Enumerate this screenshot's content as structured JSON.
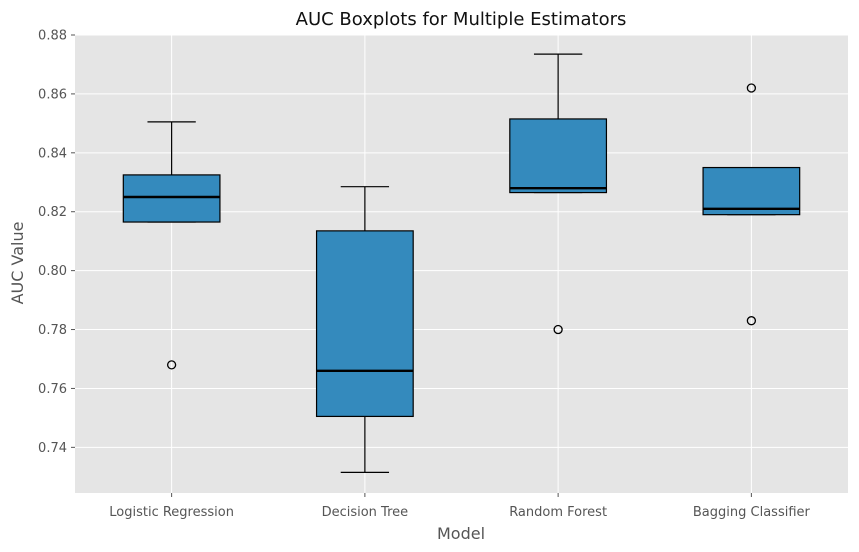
{
  "chart_data": {
    "type": "boxplot",
    "title": "AUC Boxplots for Multiple Estimators",
    "xlabel": "Model",
    "ylabel": "AUC Value",
    "ylim": [
      0.7245,
      0.88
    ],
    "yticks": [
      "0.74",
      "0.76",
      "0.78",
      "0.80",
      "0.82",
      "0.84",
      "0.86",
      "0.88"
    ],
    "categories": [
      "Logistic Regression",
      "Decision Tree",
      "Random Forest",
      "Bagging Classifier"
    ],
    "boxes": [
      {
        "whisker_low": 0.8165,
        "q1": 0.8165,
        "median": 0.825,
        "q3": 0.8325,
        "whisker_high": 0.8505,
        "outliers": [
          0.768
        ]
      },
      {
        "whisker_low": 0.7315,
        "q1": 0.7505,
        "median": 0.766,
        "q3": 0.8135,
        "whisker_high": 0.8285,
        "outliers": []
      },
      {
        "whisker_low": 0.8265,
        "q1": 0.8265,
        "median": 0.828,
        "q3": 0.8515,
        "whisker_high": 0.8735,
        "outliers": [
          0.78
        ]
      },
      {
        "whisker_low": 0.819,
        "q1": 0.819,
        "median": 0.821,
        "q3": 0.835,
        "whisker_high": 0.835,
        "outliers": [
          0.862,
          0.783
        ]
      }
    ],
    "grid": true,
    "legend": "none",
    "colors": {
      "box_fill": "#348ABD",
      "plot_bg": "#E5E5E5",
      "grid": "#FFFFFF",
      "edge": "#000000"
    }
  }
}
